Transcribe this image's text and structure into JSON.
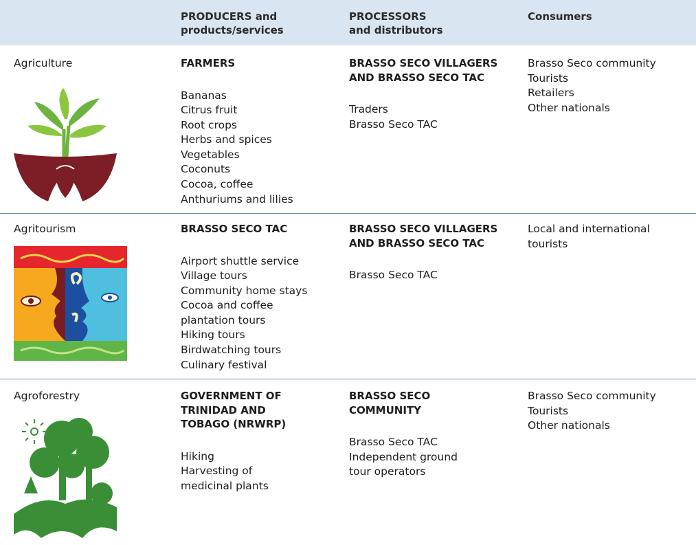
{
  "table": {
    "header": [
      [
        "PRODUCERS and",
        "products/services"
      ],
      [
        "PROCESSORS",
        "and distributors"
      ],
      [
        "Consumers"
      ]
    ],
    "rows": [
      {
        "sector": "Agriculture",
        "producers": {
          "heading": [
            "FARMERS"
          ],
          "items": [
            "Bananas",
            "Citrus fruit",
            "Root crops",
            "Herbs and spices",
            "Vegetables",
            "Coconuts",
            "Cocoa, coffee",
            "Anthuriums and lilies"
          ]
        },
        "processors": {
          "heading": [
            "BRASSO SECO VILLAGERS",
            "AND BRASSO SECO TAC"
          ],
          "items": [
            "Traders",
            "Brasso Seco TAC"
          ]
        },
        "consumers": [
          "Brasso Seco community",
          "Tourists",
          "Retailers",
          "Other nationals"
        ]
      },
      {
        "sector": "Agritourism",
        "producers": {
          "heading": [
            "BRASSO SECO TAC"
          ],
          "items": [
            "Airport shuttle service",
            "Village tours",
            "Community home stays",
            "Cocoa and coffee",
            "plantation tours",
            "Hiking tours",
            "Birdwatching tours",
            "Culinary festival"
          ]
        },
        "processors": {
          "heading": [
            "BRASSO SECO VILLAGERS",
            "AND BRASSO SECO TAC"
          ],
          "items": [
            "Brasso Seco TAC"
          ]
        },
        "consumers": [
          "Local and international",
          "tourists"
        ]
      },
      {
        "sector": "Agroforestry",
        "producers": {
          "heading": [
            "GOVERNMENT OF",
            "TRINIDAD AND",
            "TOBAGO (NRWRP)"
          ],
          "items": [
            "Hiking",
            "Harvesting of",
            "medicinal plants"
          ]
        },
        "processors": {
          "heading": [
            "BRASSO SECO",
            "COMMUNITY"
          ],
          "items": [
            "Brasso Seco TAC",
            "Independent ground",
            "tour operators"
          ]
        },
        "consumers": [
          "Brasso Seco community",
          "Tourists",
          "Other nationals"
        ]
      }
    ]
  }
}
